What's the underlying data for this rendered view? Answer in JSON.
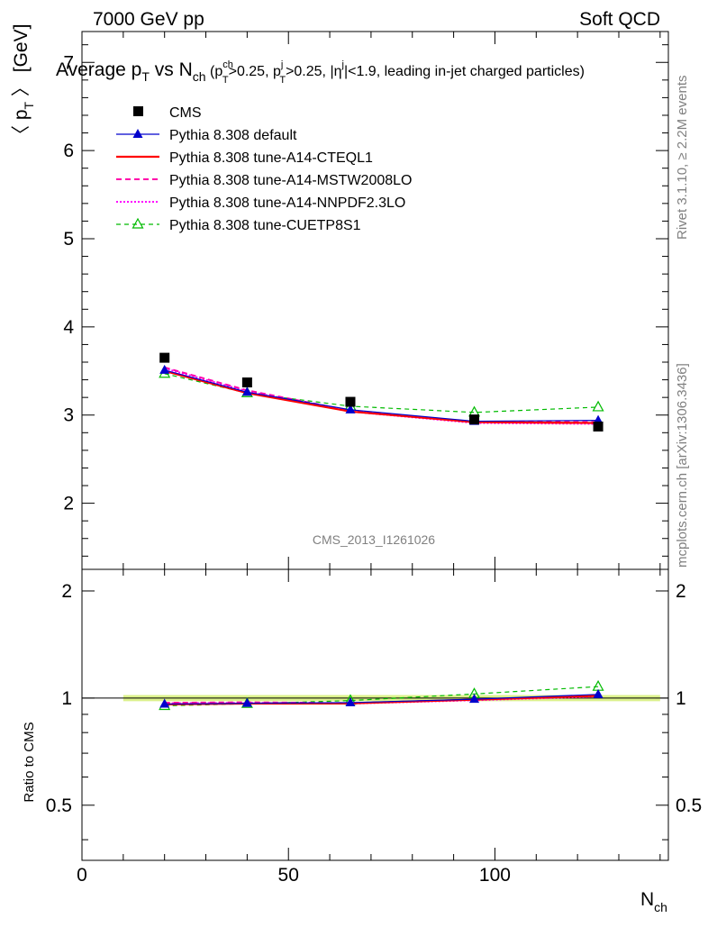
{
  "header": {
    "left": "7000 GeV pp",
    "right": "Soft QCD"
  },
  "title": {
    "main": "Average p",
    "main_sub": "T",
    "vs": " vs N",
    "vs_sub": "ch",
    "cut1": " (p",
    "cut1_sup": "ch",
    "cut1_sub": "T",
    "cut1_rest": ">0.25, p",
    "cut2_sup": "j",
    "cut2_sub": "T",
    "cut2_rest": ">0.25, |η",
    "cut3_sup": "j",
    "cut3_rest": "|<1.9, leading in-jet charged particles)"
  },
  "side_notes": {
    "rivet": "Rivet 3.1.10, ≥ 2.2M events",
    "mcplots": "mcplots.cern.ch [arXiv:1306.3436]"
  },
  "analysis_label": "CMS_2013_I1261026",
  "colors": {
    "cms": "#000000",
    "default": "#0000cc",
    "cteql1": "#ff0000",
    "mstw": "#ff00aa",
    "nnpdf": "#ff00ff",
    "cuetp8s1": "#00bb00",
    "band": "#d8f080"
  },
  "chart_data": {
    "type": "line",
    "xlabel": "N",
    "xlabel_sub": "ch",
    "ylabel": "〈 p",
    "ylabel_sub": "T",
    "ylabel_unit": " 〉 [GeV]",
    "ratio_ylabel": "Ratio to CMS",
    "xlim": [
      0,
      142
    ],
    "ylim": [
      1.25,
      7.35
    ],
    "ratio_ylim": [
      0.35,
      2.3
    ],
    "ratio_log": true,
    "x_ticks": [
      "0",
      "50",
      "100"
    ],
    "y_ticks": [
      "2",
      "3",
      "4",
      "5",
      "6",
      "7"
    ],
    "ratio_ticks": [
      "0.5",
      "1",
      "2"
    ],
    "legend_position": "top-left",
    "x": [
      20,
      40,
      65,
      95,
      125
    ],
    "series": [
      {
        "name": "CMS",
        "key": "cms",
        "values": [
          3.65,
          3.37,
          3.15,
          2.95,
          2.87
        ],
        "ratio": [
          1.0,
          1.0,
          1.0,
          1.0,
          1.0
        ]
      },
      {
        "name": "Pythia 8.308 default",
        "key": "default",
        "values": [
          3.51,
          3.26,
          3.06,
          2.93,
          2.94
        ],
        "ratio": [
          0.962,
          0.967,
          0.971,
          0.993,
          1.024
        ]
      },
      {
        "name": "Pythia 8.308 tune-A14-CTEQL1",
        "key": "cteql1",
        "values": [
          3.5,
          3.25,
          3.04,
          2.92,
          2.91
        ],
        "ratio": [
          0.96,
          0.965,
          0.966,
          0.99,
          1.015
        ]
      },
      {
        "name": "Pythia 8.308 tune-A14-MSTW2008LO",
        "key": "mstw",
        "values": [
          3.54,
          3.28,
          3.05,
          2.92,
          2.92
        ],
        "ratio": [
          0.97,
          0.973,
          0.968,
          0.99,
          1.017
        ]
      },
      {
        "name": "Pythia 8.308 tune-A14-NNPDF2.3LO",
        "key": "nnpdf",
        "values": [
          3.53,
          3.27,
          3.04,
          2.91,
          2.9
        ],
        "ratio": [
          0.967,
          0.97,
          0.965,
          0.986,
          1.01
        ]
      },
      {
        "name": "Pythia 8.308 tune-CUETP8S1",
        "key": "cuetp8s1",
        "values": [
          3.47,
          3.25,
          3.1,
          3.03,
          3.09
        ],
        "ratio": [
          0.951,
          0.964,
          0.984,
          1.027,
          1.077
        ]
      }
    ]
  }
}
